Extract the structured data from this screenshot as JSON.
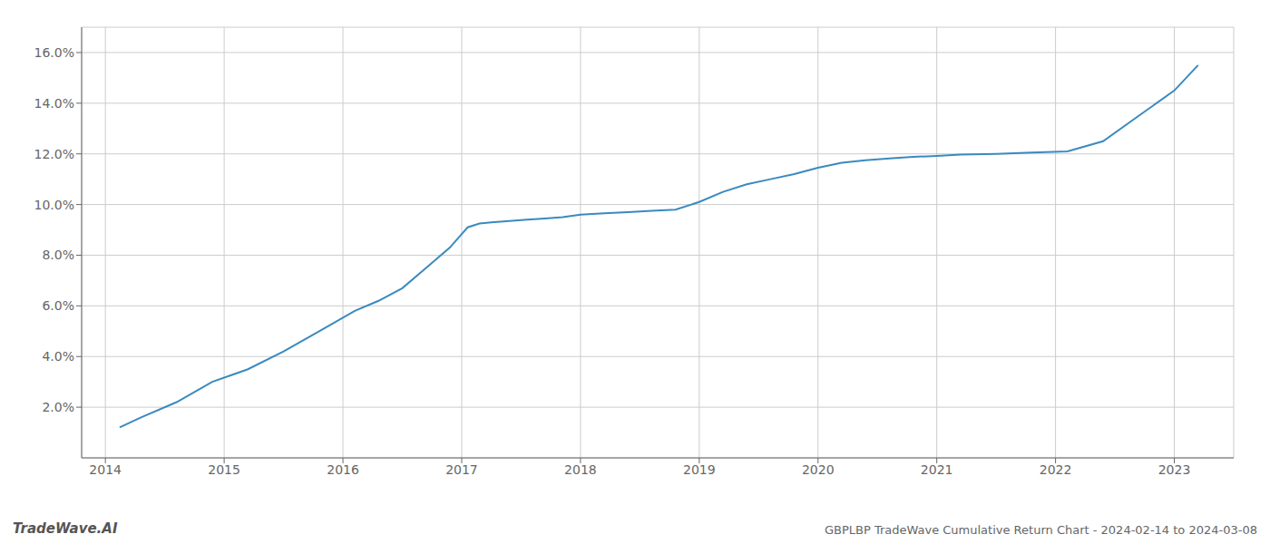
{
  "chart_data": {
    "type": "line",
    "title": "GBPLBP TradeWave Cumulative Return Chart - 2024-02-14 to 2024-03-08",
    "annotations": [
      "TradeWave.AI"
    ],
    "x": [
      2014.12,
      2014.3,
      2014.6,
      2014.9,
      2015.2,
      2015.5,
      2015.8,
      2016.1,
      2016.3,
      2016.5,
      2016.7,
      2016.9,
      2017.05,
      2017.15,
      2017.25,
      2017.4,
      2017.55,
      2017.7,
      2017.85,
      2018.0,
      2018.2,
      2018.4,
      2018.6,
      2018.8,
      2019.0,
      2019.2,
      2019.4,
      2019.6,
      2019.8,
      2020.0,
      2020.2,
      2020.4,
      2020.6,
      2020.8,
      2021.0,
      2021.2,
      2021.5,
      2021.8,
      2022.1,
      2022.4,
      2022.7,
      2023.0,
      2023.2
    ],
    "values": [
      1.2,
      1.6,
      2.2,
      3.0,
      3.5,
      4.2,
      5.0,
      5.8,
      6.2,
      6.7,
      7.5,
      8.3,
      9.1,
      9.25,
      9.3,
      9.35,
      9.4,
      9.45,
      9.5,
      9.6,
      9.65,
      9.7,
      9.75,
      9.8,
      10.1,
      10.5,
      10.8,
      11.0,
      11.2,
      11.45,
      11.65,
      11.75,
      11.82,
      11.88,
      11.92,
      11.97,
      12.0,
      12.05,
      12.1,
      12.5,
      13.5,
      14.5,
      15.5
    ],
    "color": "#3a8abf",
    "xlim": [
      2013.8,
      2023.5
    ],
    "ylim": [
      0.0,
      17.0
    ],
    "xticks": [
      2014,
      2015,
      2016,
      2017,
      2018,
      2019,
      2020,
      2021,
      2022,
      2023
    ],
    "yticks": [
      {
        "value": 2.0,
        "label": "2.0%"
      },
      {
        "value": 4.0,
        "label": "4.0%"
      },
      {
        "value": 6.0,
        "label": "6.0%"
      },
      {
        "value": 8.0,
        "label": "8.0%"
      },
      {
        "value": 10.0,
        "label": "10.0%"
      },
      {
        "value": 12.0,
        "label": "12.0%"
      },
      {
        "value": 14.0,
        "label": "14.0%"
      },
      {
        "value": 16.0,
        "label": "16.0%"
      }
    ],
    "grid": true
  }
}
